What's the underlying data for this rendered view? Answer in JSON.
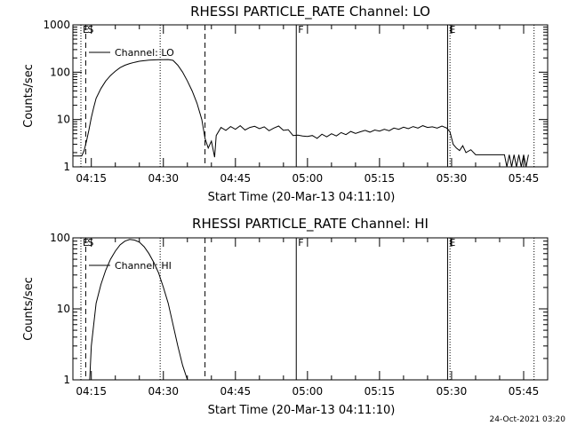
{
  "footer": {
    "timestamp": "24-Oct-2021 03:20"
  },
  "chart_data": [
    {
      "type": "line",
      "title": "RHESSI PARTICLE_RATE Channel: LO",
      "xlabel": "Start Time (20-Mar-13 04:11:10)",
      "ylabel": "Counts/sec",
      "yscale": "log",
      "ylim": [
        1,
        1000
      ],
      "xlim": [
        "04:11:10",
        "05:50:00"
      ],
      "x_ticks": [
        "04:15",
        "04:30",
        "04:45",
        "05:00",
        "05:15",
        "05:30",
        "05:45"
      ],
      "y_ticks": [
        "1",
        "10",
        "100",
        "1000"
      ],
      "legend": {
        "label": "Channel: LO",
        "placement": "top-left"
      },
      "event_markers": [
        {
          "label": "E",
          "style": "dotted",
          "time": "04:12:50"
        },
        {
          "label": "S",
          "style": "dashed",
          "time": "04:13:50"
        },
        {
          "label": "",
          "style": "dotted",
          "time": "04:29:20"
        },
        {
          "label": "",
          "style": "dashed",
          "time": "04:38:40"
        },
        {
          "label": "F",
          "style": "solid",
          "time": "04:57:40"
        },
        {
          "label": "E",
          "style": "solid",
          "time": "05:29:10"
        },
        {
          "label": "",
          "style": "dotted",
          "time": "05:29:40"
        },
        {
          "label": "",
          "style": "dotted",
          "time": "05:47:10"
        }
      ],
      "series": [
        {
          "name": "Channel: LO",
          "x": [
            "04:11:10",
            "04:13:00",
            "04:13:30",
            "04:14:00",
            "04:14:30",
            "04:15:00",
            "04:15:30",
            "04:16:00",
            "04:17:00",
            "04:18:00",
            "04:19:00",
            "04:20:00",
            "04:21:00",
            "04:22:00",
            "04:23:00",
            "04:24:00",
            "04:25:00",
            "04:26:00",
            "04:27:00",
            "04:28:00",
            "04:29:00",
            "04:30:00",
            "04:31:00",
            "04:32:00",
            "04:33:00",
            "04:34:00",
            "04:35:00",
            "04:36:00",
            "04:37:00",
            "04:38:00",
            "04:38:40",
            "04:39:20",
            "04:40:00",
            "04:40:40",
            "04:41:00",
            "04:42:00",
            "04:43:00",
            "04:44:00",
            "04:45:00",
            "04:46:00",
            "04:47:00",
            "04:48:00",
            "04:49:00",
            "04:50:00",
            "04:51:00",
            "04:52:00",
            "04:53:00",
            "04:54:00",
            "04:55:00",
            "04:56:00",
            "04:57:00",
            "04:58:00",
            "04:59:00",
            "05:00:00",
            "05:01:00",
            "05:02:00",
            "05:03:00",
            "05:04:00",
            "05:05:00",
            "05:06:00",
            "05:07:00",
            "05:08:00",
            "05:09:00",
            "05:10:00",
            "05:11:00",
            "05:12:00",
            "05:13:00",
            "05:14:00",
            "05:15:00",
            "05:16:00",
            "05:17:00",
            "05:18:00",
            "05:19:00",
            "05:20:00",
            "05:21:00",
            "05:22:00",
            "05:23:00",
            "05:24:00",
            "05:25:00",
            "05:26:00",
            "05:27:00",
            "05:28:00",
            "05:29:00",
            "05:29:40",
            "05:30:20",
            "05:31:00",
            "05:31:40",
            "05:32:20",
            "05:33:00",
            "05:34:00",
            "05:35:00",
            "05:36:00",
            "05:37:00",
            "05:38:00",
            "05:39:00",
            "05:40:00",
            "05:41:00",
            "05:41:30",
            "05:42:00",
            "05:42:30",
            "05:43:00",
            "05:43:30",
            "05:44:00",
            "05:44:30",
            "05:45:00",
            "05:45:30",
            "05:46:00"
          ],
          "values": [
            1.7,
            1.7,
            2.2,
            3.5,
            6,
            11,
            18,
            28,
            45,
            65,
            85,
            105,
            125,
            140,
            152,
            162,
            170,
            175,
            180,
            182,
            183,
            183,
            185,
            178,
            140,
            100,
            65,
            40,
            22,
            10,
            4,
            2.5,
            3.5,
            1.6,
            4.6,
            6.8,
            5.9,
            7.1,
            6.2,
            7.4,
            6.0,
            6.8,
            7.2,
            6.4,
            7.0,
            5.8,
            6.6,
            7.3,
            5.9,
            6.1,
            4.6,
            4.7,
            4.5,
            4.4,
            4.6,
            4.0,
            4.9,
            4.3,
            5.0,
            4.5,
            5.3,
            4.8,
            5.6,
            5.1,
            5.5,
            5.9,
            5.4,
            6.0,
            5.7,
            6.2,
            5.8,
            6.6,
            6.2,
            6.9,
            6.4,
            7.1,
            6.6,
            7.4,
            6.8,
            7.0,
            6.6,
            7.3,
            6.6,
            5.5,
            3.0,
            2.5,
            2.2,
            2.8,
            2.0,
            2.3,
            1.8,
            1.8,
            1.8,
            1.8,
            1.8,
            1.8,
            1.8,
            1.0,
            1.8,
            1.0,
            1.8,
            1.0,
            1.8,
            1.0,
            1.8,
            1.0,
            1.8
          ]
        }
      ]
    },
    {
      "type": "line",
      "title": "RHESSI PARTICLE_RATE Channel: HI",
      "xlabel": "Start Time (20-Mar-13 04:11:10)",
      "ylabel": "Counts/sec",
      "yscale": "log",
      "ylim": [
        1,
        100
      ],
      "xlim": [
        "04:11:10",
        "05:50:00"
      ],
      "x_ticks": [
        "04:15",
        "04:30",
        "04:45",
        "05:00",
        "05:15",
        "05:30",
        "05:45"
      ],
      "y_ticks": [
        "1",
        "10",
        "100"
      ],
      "legend": {
        "label": "Channel: HI",
        "placement": "top-left"
      },
      "event_markers": [
        {
          "label": "E",
          "style": "dotted",
          "time": "04:12:50"
        },
        {
          "label": "S",
          "style": "dashed",
          "time": "04:13:50"
        },
        {
          "label": "",
          "style": "dotted",
          "time": "04:29:20"
        },
        {
          "label": "",
          "style": "dashed",
          "time": "04:38:40"
        },
        {
          "label": "F",
          "style": "solid",
          "time": "04:57:40"
        },
        {
          "label": "E",
          "style": "solid",
          "time": "05:29:10"
        },
        {
          "label": "",
          "style": "dotted",
          "time": "05:29:40"
        },
        {
          "label": "",
          "style": "dotted",
          "time": "05:47:10"
        }
      ],
      "series": [
        {
          "name": "Channel: HI",
          "x": [
            "04:14:40",
            "04:15:00",
            "04:15:30",
            "04:16:00",
            "04:17:00",
            "04:18:00",
            "04:19:00",
            "04:20:00",
            "04:21:00",
            "04:22:00",
            "04:23:00",
            "04:24:00",
            "04:25:00",
            "04:26:00",
            "04:27:00",
            "04:28:00",
            "04:29:00",
            "04:30:00",
            "04:31:00",
            "04:32:00",
            "04:33:00",
            "04:34:00",
            "04:35:00"
          ],
          "values": [
            1,
            3,
            6,
            12,
            22,
            35,
            50,
            65,
            80,
            90,
            95,
            93,
            87,
            75,
            60,
            45,
            32,
            20,
            12,
            6,
            3,
            1.6,
            1
          ]
        }
      ]
    }
  ]
}
